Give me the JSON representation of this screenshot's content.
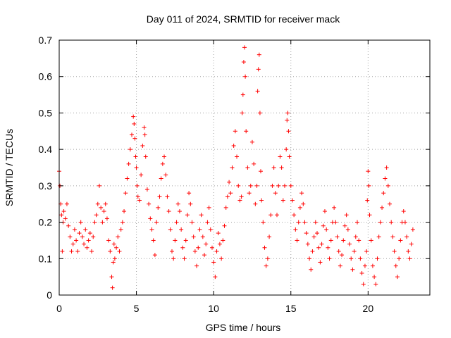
{
  "chart_data": {
    "type": "scatter",
    "title": "Day 011 of 2024, SRMTID for receiver mack",
    "xlabel": "GPS time / hours",
    "ylabel": "SRMTID / TECUs",
    "xlim": [
      0,
      24
    ],
    "ylim": [
      0,
      0.7
    ],
    "xticks": [
      0,
      5,
      10,
      15,
      20
    ],
    "xtick_labels": [
      "0",
      "5",
      "10",
      "15",
      "20"
    ],
    "yticks": [
      0,
      0.1,
      0.2,
      0.3,
      0.4,
      0.5,
      0.6,
      0.7
    ],
    "ytick_labels": [
      "0",
      "0.1",
      "0.2",
      "0.3",
      "0.4",
      "0.5",
      "0.6",
      "0.7"
    ],
    "grid": true,
    "marker": "plus",
    "series": [
      {
        "name": "SRMTID",
        "color": "#ff0000",
        "x": [
          0.0,
          0.05,
          0.1,
          0.15,
          0.2,
          0.25,
          0.3,
          0.4,
          0.5,
          0.6,
          0.7,
          0.8,
          0.9,
          1.0,
          1.1,
          1.2,
          1.3,
          1.4,
          1.5,
          1.6,
          1.7,
          1.8,
          1.9,
          2.0,
          2.1,
          2.2,
          2.3,
          2.4,
          2.5,
          2.6,
          2.7,
          2.8,
          2.9,
          3.0,
          3.1,
          3.2,
          3.3,
          3.4,
          3.45,
          3.5,
          3.55,
          3.6,
          3.7,
          3.8,
          3.9,
          4.0,
          4.1,
          4.2,
          4.3,
          4.4,
          4.5,
          4.6,
          4.7,
          4.8,
          4.85,
          4.9,
          4.95,
          5.0,
          5.05,
          5.1,
          5.2,
          5.3,
          5.4,
          5.5,
          5.55,
          5.6,
          5.7,
          5.8,
          5.9,
          6.0,
          6.1,
          6.2,
          6.3,
          6.4,
          6.5,
          6.6,
          6.7,
          6.8,
          6.9,
          7.0,
          7.1,
          7.2,
          7.3,
          7.4,
          7.5,
          7.6,
          7.7,
          7.8,
          7.9,
          8.0,
          8.1,
          8.2,
          8.3,
          8.4,
          8.5,
          8.6,
          8.7,
          8.8,
          8.9,
          9.0,
          9.1,
          9.2,
          9.3,
          9.4,
          9.5,
          9.6,
          9.7,
          9.8,
          9.9,
          10.0,
          10.1,
          10.2,
          10.3,
          10.4,
          10.5,
          10.6,
          10.7,
          10.8,
          10.9,
          11.0,
          11.1,
          11.2,
          11.3,
          11.4,
          11.5,
          11.6,
          11.7,
          11.8,
          11.85,
          11.9,
          11.95,
          12.0,
          12.05,
          12.1,
          12.2,
          12.3,
          12.4,
          12.5,
          12.6,
          12.7,
          12.8,
          12.85,
          12.9,
          12.95,
          13.0,
          13.05,
          13.1,
          13.2,
          13.3,
          13.4,
          13.5,
          13.6,
          13.7,
          13.8,
          13.9,
          14.0,
          14.1,
          14.2,
          14.3,
          14.4,
          14.5,
          14.6,
          14.7,
          14.75,
          14.8,
          14.85,
          14.9,
          15.0,
          15.1,
          15.2,
          15.3,
          15.4,
          15.5,
          15.6,
          15.7,
          15.8,
          15.9,
          16.0,
          16.1,
          16.2,
          16.3,
          16.4,
          16.5,
          16.6,
          16.7,
          16.8,
          16.9,
          17.0,
          17.1,
          17.2,
          17.3,
          17.4,
          17.5,
          17.6,
          17.7,
          17.8,
          17.9,
          18.0,
          18.1,
          18.2,
          18.3,
          18.4,
          18.5,
          18.6,
          18.7,
          18.8,
          18.9,
          19.0,
          19.1,
          19.2,
          19.3,
          19.4,
          19.5,
          19.6,
          19.7,
          19.8,
          19.9,
          19.95,
          20.0,
          20.05,
          20.1,
          20.2,
          20.3,
          20.4,
          20.5,
          20.6,
          20.7,
          20.8,
          20.9,
          21.0,
          21.1,
          21.2,
          21.3,
          21.4,
          21.5,
          21.6,
          21.7,
          21.8,
          21.9,
          22.0,
          22.1,
          22.2,
          22.3,
          22.4,
          22.5,
          22.6,
          22.7,
          22.8,
          22.9
        ],
        "y": [
          0.34,
          0.3,
          0.25,
          0.22,
          0.12,
          0.2,
          0.23,
          0.21,
          0.25,
          0.19,
          0.16,
          0.12,
          0.14,
          0.18,
          0.15,
          0.12,
          0.17,
          0.2,
          0.16,
          0.14,
          0.18,
          0.13,
          0.15,
          0.17,
          0.12,
          0.16,
          0.2,
          0.22,
          0.25,
          0.3,
          0.24,
          0.2,
          0.23,
          0.25,
          0.21,
          0.15,
          0.12,
          0.05,
          0.02,
          0.09,
          0.14,
          0.1,
          0.13,
          0.16,
          0.12,
          0.18,
          0.2,
          0.23,
          0.28,
          0.32,
          0.36,
          0.4,
          0.44,
          0.49,
          0.47,
          0.43,
          0.38,
          0.35,
          0.3,
          0.27,
          0.26,
          0.33,
          0.41,
          0.46,
          0.44,
          0.38,
          0.29,
          0.25,
          0.21,
          0.18,
          0.15,
          0.11,
          0.2,
          0.24,
          0.27,
          0.32,
          0.36,
          0.38,
          0.33,
          0.27,
          0.23,
          0.18,
          0.12,
          0.1,
          0.15,
          0.2,
          0.25,
          0.23,
          0.18,
          0.13,
          0.1,
          0.15,
          0.22,
          0.28,
          0.25,
          0.2,
          0.16,
          0.12,
          0.08,
          0.13,
          0.18,
          0.22,
          0.16,
          0.11,
          0.14,
          0.2,
          0.24,
          0.18,
          0.13,
          0.09,
          0.05,
          0.12,
          0.17,
          0.14,
          0.1,
          0.15,
          0.19,
          0.24,
          0.27,
          0.31,
          0.28,
          0.35,
          0.41,
          0.45,
          0.38,
          0.3,
          0.26,
          0.27,
          0.5,
          0.55,
          0.64,
          0.68,
          0.6,
          0.45,
          0.35,
          0.28,
          0.3,
          0.42,
          0.36,
          0.25,
          0.3,
          0.56,
          0.62,
          0.66,
          0.5,
          0.34,
          0.26,
          0.2,
          0.13,
          0.08,
          0.1,
          0.16,
          0.22,
          0.3,
          0.35,
          0.28,
          0.22,
          0.3,
          0.38,
          0.35,
          0.26,
          0.3,
          0.4,
          0.48,
          0.5,
          0.45,
          0.38,
          0.3,
          0.26,
          0.22,
          0.18,
          0.15,
          0.2,
          0.24,
          0.28,
          0.25,
          0.2,
          0.17,
          0.14,
          0.1,
          0.07,
          0.12,
          0.16,
          0.2,
          0.17,
          0.13,
          0.09,
          0.14,
          0.19,
          0.23,
          0.18,
          0.13,
          0.1,
          0.15,
          0.2,
          0.24,
          0.2,
          0.16,
          0.12,
          0.08,
          0.11,
          0.15,
          0.19,
          0.22,
          0.18,
          0.14,
          0.1,
          0.07,
          0.12,
          0.16,
          0.2,
          0.15,
          0.1,
          0.06,
          0.03,
          0.08,
          0.12,
          0.26,
          0.34,
          0.3,
          0.22,
          0.15,
          0.08,
          0.05,
          0.03,
          0.1,
          0.16,
          0.2,
          0.24,
          0.28,
          0.32,
          0.35,
          0.3,
          0.25,
          0.2,
          0.16,
          0.12,
          0.08,
          0.05,
          0.1,
          0.15,
          0.2,
          0.23,
          0.2,
          0.16,
          0.12,
          0.1,
          0.14,
          0.18
        ]
      }
    ]
  }
}
